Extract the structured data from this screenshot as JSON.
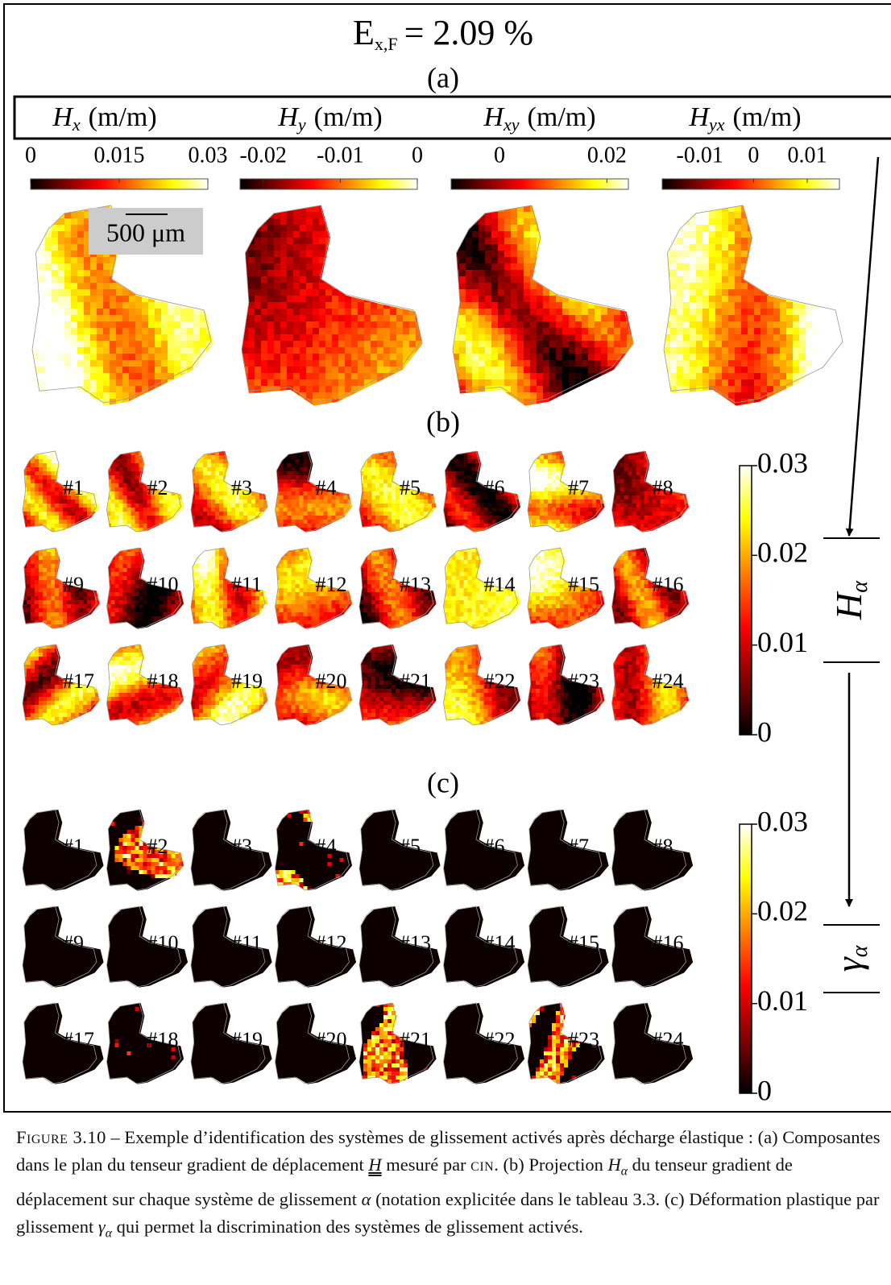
{
  "title": {
    "symbol": "E",
    "sub": "x,F",
    "rest": "= 2.09 %"
  },
  "panels": {
    "a": "(a)",
    "b": "(b)",
    "c": "(c)"
  },
  "components": [
    {
      "symbol": "H",
      "index": "x",
      "unit": "(m/m)",
      "lim": [
        0,
        0.03
      ],
      "ticks": [
        0,
        0.015,
        0.03
      ]
    },
    {
      "symbol": "H",
      "index": "y",
      "unit": "(m/m)",
      "lim": [
        -0.023,
        0
      ],
      "ticks": [
        -0.02,
        -0.01,
        0
      ]
    },
    {
      "symbol": "H",
      "index": "xy",
      "unit": "(m/m)",
      "lim": [
        -0.009,
        0.024
      ],
      "ticks": [
        0,
        0.02
      ]
    },
    {
      "symbol": "H",
      "index": "yx",
      "unit": "(m/m)",
      "lim": [
        -0.017,
        0.016
      ],
      "ticks": [
        -0.01,
        0,
        0.01
      ]
    }
  ],
  "scale_bar": "500 μm",
  "projection": {
    "systems": [
      "#1",
      "#2",
      "#3",
      "#4",
      "#5",
      "#6",
      "#7",
      "#8",
      "#9",
      "#10",
      "#11",
      "#12",
      "#13",
      "#14",
      "#15",
      "#16",
      "#17",
      "#18",
      "#19",
      "#20",
      "#21",
      "#22",
      "#23",
      "#24"
    ],
    "colorbar": {
      "symbol": "H",
      "sub": "α",
      "lim": [
        0,
        0.03
      ],
      "ticks": [
        0,
        0.01,
        0.02,
        0.03
      ]
    }
  },
  "slip": {
    "systems": [
      "#1",
      "#2",
      "#3",
      "#4",
      "#5",
      "#6",
      "#7",
      "#8",
      "#9",
      "#10",
      "#11",
      "#12",
      "#13",
      "#14",
      "#15",
      "#16",
      "#17",
      "#18",
      "#19",
      "#20",
      "#21",
      "#22",
      "#23",
      "#24"
    ],
    "colorbar": {
      "symbol": "γ",
      "sub": "α",
      "lim": [
        0,
        0.03
      ],
      "ticks": [
        0,
        0.01,
        0.02,
        0.03
      ]
    }
  },
  "caption": {
    "label": "Figure 3.10",
    "parts": [
      " – Exemple d’identification des systèmes de glissement activés après décharge élastique : (a) Composantes dans le plan du tenseur gradient de déplacement ",
      "H",
      " mesuré par ",
      "cin",
      ". (b) Projection ",
      "H",
      "α",
      " du tenseur gradient de déplacement sur chaque système de glissement ",
      "α",
      " (notation explicitée dans le tableau 3.3. (c) Déformation plastique par glissement ",
      "γ",
      "α",
      " qui permet la discrimination des systèmes de glissement activés."
    ]
  }
}
